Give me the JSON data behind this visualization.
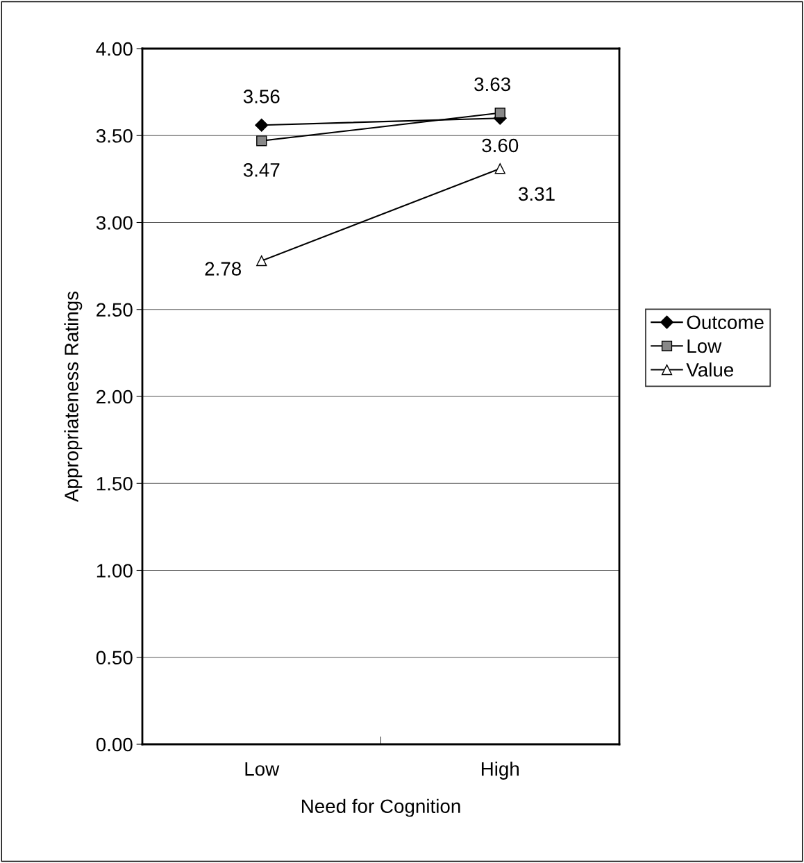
{
  "chart_data": {
    "type": "line",
    "xlabel": "Need for Cognition",
    "ylabel": "Appropriateness Ratings",
    "categories": [
      "Low",
      "High"
    ],
    "series": [
      {
        "name": "Outcome",
        "color": "#000000",
        "marker": "diamond",
        "values": [
          3.56,
          3.6
        ],
        "value_labels": [
          "3.56",
          "3.60"
        ]
      },
      {
        "name": "Low",
        "color": "#000000",
        "marker": "square",
        "values": [
          3.47,
          3.63
        ],
        "value_labels": [
          "3.47",
          "3.63"
        ]
      },
      {
        "name": "Value",
        "color": "#000000",
        "marker": "triangle",
        "values": [
          2.78,
          3.31
        ],
        "value_labels": [
          "2.78",
          "3.31"
        ]
      }
    ],
    "ylim": [
      0,
      4
    ],
    "yticks": [
      {
        "value": 0,
        "label": "0.00"
      },
      {
        "value": 0.5,
        "label": "0.50"
      },
      {
        "value": 1,
        "label": "1.00"
      },
      {
        "value": 1.5,
        "label": "1.50"
      },
      {
        "value": 2,
        "label": "2.00"
      },
      {
        "value": 2.5,
        "label": "2.50"
      },
      {
        "value": 3,
        "label": "3.00"
      },
      {
        "value": 3.5,
        "label": "3.50"
      },
      {
        "value": 4,
        "label": "4.00"
      }
    ],
    "grid": "y",
    "legend": "right",
    "line_style": "solid"
  }
}
